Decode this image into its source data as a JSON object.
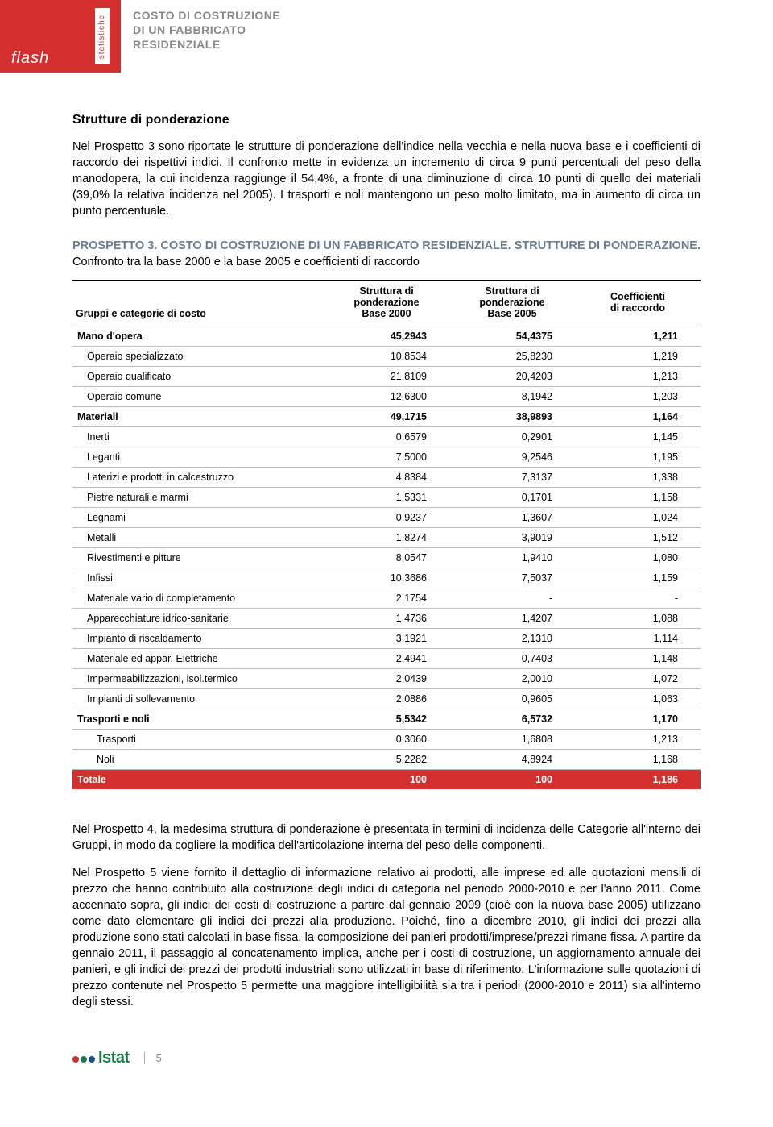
{
  "header": {
    "flash": "flash",
    "vertical": "statistiche",
    "doc_title_l1": "COSTO DI COSTRUZIONE",
    "doc_title_l2": "DI UN FABBRICATO",
    "doc_title_l3": "RESIDENZIALE",
    "red_color": "#d32f2f"
  },
  "section": {
    "title": "Strutture di ponderazione",
    "para1": "Nel Prospetto 3 sono riportate le strutture di ponderazione dell'indice nella vecchia e nella nuova base e i coefficienti di raccordo dei rispettivi indici. Il confronto mette in evidenza un incremento di circa 9 punti percentuali del peso della manodopera, la cui incidenza raggiunge il 54,4%, a fronte di una diminuzione di circa 10 punti di quello dei materiali (39,0% la relativa incidenza nel 2005). I trasporti e noli mantengono un peso molto limitato, ma in aumento di circa un punto percentuale."
  },
  "prospetto": {
    "lead": "PROSPETTO 3. COSTO DI COSTRUZIONE DI UN FABBRICATO RESIDENZIALE. STRUTTURE DI PONDERAZIONE.",
    "sub": " Confronto tra la base 2000 e la base 2005 e coefficienti di raccordo",
    "col0": "Gruppi e categorie di costo",
    "col1_l1": "Struttura di",
    "col1_l2": "ponderazione",
    "col1_l3": "Base 2000",
    "col2_l1": "Struttura di",
    "col2_l2": "ponderazione",
    "col2_l3": "Base 2005",
    "col3_l1": "Coefficienti",
    "col3_l2": "di raccordo"
  },
  "rows": [
    {
      "label": "Mano d'opera",
      "v1": "45,2943",
      "v2": "54,4375",
      "v3": "1,211",
      "cls": "bold",
      "indent": 0
    },
    {
      "label": "Operaio specializzato",
      "v1": "10,8534",
      "v2": "25,8230",
      "v3": "1,219",
      "cls": "",
      "indent": 1
    },
    {
      "label": "Operaio qualificato",
      "v1": "21,8109",
      "v2": "20,4203",
      "v3": "1,213",
      "cls": "",
      "indent": 1
    },
    {
      "label": "Operaio comune",
      "v1": "12,6300",
      "v2": "8,1942",
      "v3": "1,203",
      "cls": "",
      "indent": 1
    },
    {
      "label": "Materiali",
      "v1": "49,1715",
      "v2": "38,9893",
      "v3": "1,164",
      "cls": "bold",
      "indent": 0
    },
    {
      "label": "Inerti",
      "v1": "0,6579",
      "v2": "0,2901",
      "v3": "1,145",
      "cls": "",
      "indent": 1
    },
    {
      "label": "Leganti",
      "v1": "7,5000",
      "v2": "9,2546",
      "v3": "1,195",
      "cls": "",
      "indent": 1
    },
    {
      "label": "Laterizi e prodotti in calcestruzzo",
      "v1": "4,8384",
      "v2": "7,3137",
      "v3": "1,338",
      "cls": "",
      "indent": 1
    },
    {
      "label": "Pietre naturali e marmi",
      "v1": "1,5331",
      "v2": "0,1701",
      "v3": "1,158",
      "cls": "",
      "indent": 1
    },
    {
      "label": "Legnami",
      "v1": "0,9237",
      "v2": "1,3607",
      "v3": "1,024",
      "cls": "",
      "indent": 1
    },
    {
      "label": "Metalli",
      "v1": "1,8274",
      "v2": "3,9019",
      "v3": "1,512",
      "cls": "",
      "indent": 1
    },
    {
      "label": "Rivestimenti e pitture",
      "v1": "8,0547",
      "v2": "1,9410",
      "v3": "1,080",
      "cls": "",
      "indent": 1
    },
    {
      "label": "Infissi",
      "v1": "10,3686",
      "v2": "7,5037",
      "v3": "1,159",
      "cls": "",
      "indent": 1
    },
    {
      "label": "Materiale vario di completamento",
      "v1": "2,1754",
      "v2": "-",
      "v3": "-",
      "cls": "",
      "indent": 1
    },
    {
      "label": "Apparecchiature idrico-sanitarie",
      "v1": "1,4736",
      "v2": "1,4207",
      "v3": "1,088",
      "cls": "",
      "indent": 1
    },
    {
      "label": "Impianto di riscaldamento",
      "v1": "3,1921",
      "v2": "2,1310",
      "v3": "1,114",
      "cls": "",
      "indent": 1
    },
    {
      "label": "Materiale ed appar. Elettriche",
      "v1": "2,4941",
      "v2": "0,7403",
      "v3": "1,148",
      "cls": "",
      "indent": 1
    },
    {
      "label": "Impermeabilizzazioni, isol.termico",
      "v1": "2,0439",
      "v2": "2,0010",
      "v3": "1,072",
      "cls": "",
      "indent": 1
    },
    {
      "label": "Impianti di sollevamento",
      "v1": "2,0886",
      "v2": "0,9605",
      "v3": "1,063",
      "cls": "",
      "indent": 1
    },
    {
      "label": "Trasporti e noli",
      "v1": "5,5342",
      "v2": "6,5732",
      "v3": "1,170",
      "cls": "bold",
      "indent": 0
    },
    {
      "label": "Trasporti",
      "v1": "0,3060",
      "v2": "1,6808",
      "v3": "1,213",
      "cls": "",
      "indent": 2
    },
    {
      "label": "Noli",
      "v1": "5,2282",
      "v2": "4,8924",
      "v3": "1,168",
      "cls": "",
      "indent": 2
    },
    {
      "label": "Totale",
      "v1": "100",
      "v2": "100",
      "v3": "1,186",
      "cls": "total",
      "indent": 0
    }
  ],
  "after": {
    "p1": "Nel Prospetto 4, la medesima struttura di ponderazione è presentata in termini di incidenza delle Categorie all'interno dei Gruppi, in modo da cogliere la modifica dell'articolazione interna del peso delle componenti.",
    "p2": "Nel Prospetto 5 viene fornito il dettaglio di informazione relativo ai prodotti, alle imprese ed alle quotazioni mensili di prezzo che hanno contribuito alla costruzione degli indici di categoria nel periodo 2000-2010 e per l'anno 2011. Come accennato sopra, gli indici dei costi di costruzione a partire dal gennaio 2009 (cioè con la nuova base 2005) utilizzano come dato elementare gli indici dei prezzi alla produzione. Poiché, fino a dicembre 2010, gli indici dei prezzi alla produzione sono stati calcolati in base fissa, la composizione dei panieri prodotti/imprese/prezzi rimane fissa. A partire da gennaio 2011, il passaggio al concatenamento implica, anche per i costi di costruzione, un aggiornamento annuale dei panieri, e gli indici dei prezzi dei prodotti industriali sono utilizzati in base di riferimento. L'informazione sulle quotazioni di prezzo contenute nel Prospetto 5 permette una maggiore intelligibilità sia tra i periodi (2000-2010 e 2011) sia all'interno degli stessi."
  },
  "footer": {
    "logo_text": "Istat",
    "dot_colors": [
      "#d32f2f",
      "#1a7a4c",
      "#1b4f8a"
    ],
    "page": "5"
  }
}
